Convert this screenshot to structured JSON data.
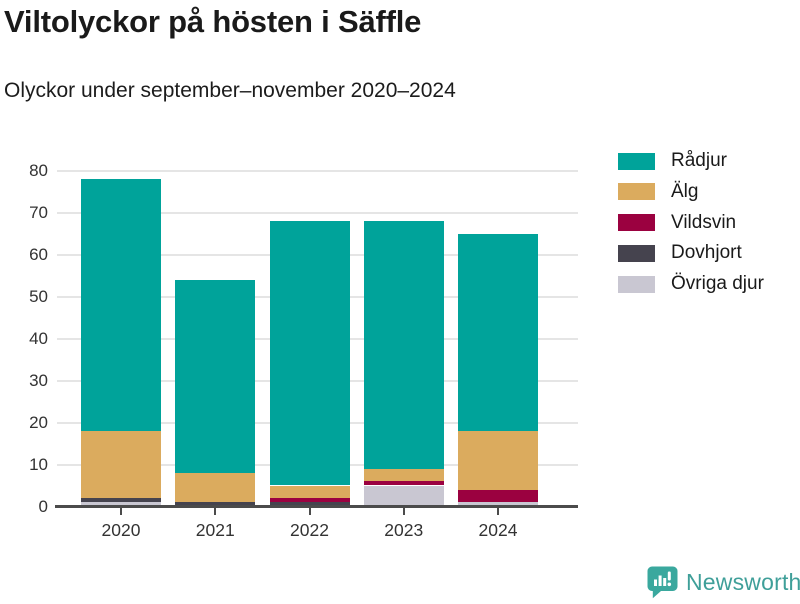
{
  "header": {
    "title": "Viltolyckor på hösten i Säffle",
    "subtitle": "Olyckor under september–november 2020–2024"
  },
  "chart_data": {
    "type": "bar",
    "stacked": true,
    "title": "Viltolyckor på hösten i Säffle",
    "subtitle": "Olyckor under september–november 2020–2024",
    "categories": [
      "2020",
      "2021",
      "2022",
      "2023",
      "2024"
    ],
    "series": [
      {
        "name": "Rådjur",
        "color": "#00a39a",
        "values": [
          60,
          46,
          63,
          59,
          47
        ]
      },
      {
        "name": "Älg",
        "color": "#dbab5e",
        "values": [
          16,
          7,
          3,
          3,
          14
        ]
      },
      {
        "name": "Vildsvin",
        "color": "#9b0140",
        "values": [
          0,
          0,
          1,
          1,
          3
        ]
      },
      {
        "name": "Dovhjort",
        "color": "#45434e",
        "values": [
          1,
          1,
          1,
          0,
          0
        ]
      },
      {
        "name": "Övriga djur",
        "color": "#c9c7d2",
        "values": [
          1,
          0,
          0,
          5,
          1
        ]
      }
    ],
    "totals": [
      78,
      54,
      68,
      68,
      65
    ],
    "stack_order_bottom_to_top": [
      "Övriga djur",
      "Dovhjort",
      "Vildsvin",
      "Älg",
      "Rådjur"
    ],
    "xlabel": "",
    "ylabel": "",
    "ylim": [
      0,
      80
    ],
    "y_ticks": [
      0,
      10,
      20,
      30,
      40,
      50,
      60,
      70,
      80
    ],
    "grid": "horizontal",
    "legend_position": "right",
    "legend_entries": [
      "Rådjur",
      "Älg",
      "Vildsvin",
      "Dovhjort",
      "Övriga djur"
    ]
  },
  "footer": {
    "brand": "Newsworthy",
    "brand_color": "#3f9f99",
    "logo_icon": "bar-chart-speech-bubble-icon"
  }
}
